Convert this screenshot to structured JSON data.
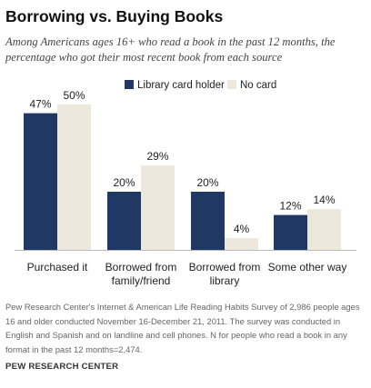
{
  "title": "Borrowing vs. Buying Books",
  "subtitle": "Among Americans ages 16+ who read a book in the past 12 months, the percentage who got their most recent book from each source",
  "chart_data": {
    "type": "bar",
    "categories": [
      [
        "Purchased it"
      ],
      [
        "Borrowed from",
        "family/friend"
      ],
      [
        "Borrowed from",
        "library"
      ],
      [
        "Some other way"
      ]
    ],
    "series": [
      {
        "name": "Library card holder",
        "color": "#1f3864",
        "values": [
          47,
          20,
          20,
          12
        ]
      },
      {
        "name": "No card",
        "color": "#ede8dc",
        "values": [
          50,
          29,
          4,
          14
        ]
      }
    ],
    "value_suffix": "%",
    "ylim": [
      0,
      50
    ],
    "xlabel": "",
    "ylabel": "",
    "legend_position": "top-center"
  },
  "footnote": "Pew Research Center's Internet & American Life Reading Habits Survey of 2,986 people ages 16 and older conducted November 16-December 21, 2011. The survey was conducted in English and Spanish and on landline and cell phones. N for people who read a book in any format in the past 12 months=2,474.",
  "source": "PEW RESEARCH CENTER"
}
